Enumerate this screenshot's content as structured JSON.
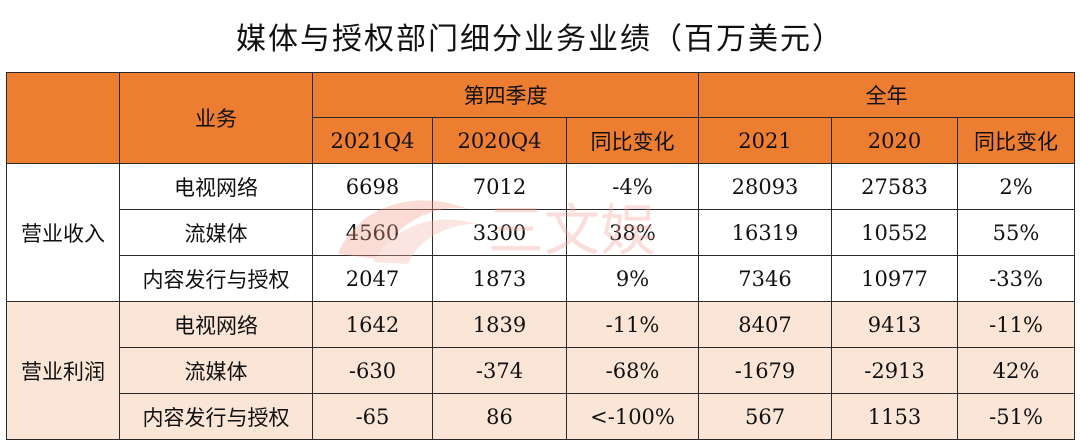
{
  "title": "媒体与授权部门细分业务业绩（百万美元）",
  "header": {
    "business": "业务",
    "q4_group": "第四季度",
    "year_group": "全年",
    "cols": [
      "2021Q4",
      "2020Q4",
      "同比变化",
      "2021",
      "2020",
      "同比变化"
    ]
  },
  "groups": [
    {
      "label": "营业收入",
      "rows": [
        {
          "name": "电视网络",
          "values": [
            "6698",
            "7012",
            "-4%",
            "28093",
            "27583",
            "2%"
          ]
        },
        {
          "name": "流媒体",
          "values": [
            "4560",
            "3300",
            "38%",
            "16319",
            "10552",
            "55%"
          ]
        },
        {
          "name": "内容发行与授权",
          "values": [
            "2047",
            "1873",
            "9%",
            "7346",
            "10977",
            "-33%"
          ]
        }
      ]
    },
    {
      "label": "营业利润",
      "rows": [
        {
          "name": "电视网络",
          "values": [
            "1642",
            "1839",
            "-11%",
            "8407",
            "9413",
            "-11%"
          ]
        },
        {
          "name": "流媒体",
          "values": [
            "-630",
            "-374",
            "-68%",
            "-1679",
            "-2913",
            "42%"
          ]
        },
        {
          "name": "内容发行与授权",
          "values": [
            "-65",
            "86",
            "<-100%",
            "567",
            "1153",
            "-51%"
          ]
        }
      ]
    }
  ],
  "watermark": {
    "text": "三文娱",
    "icon": "swirl-logo-icon"
  }
}
